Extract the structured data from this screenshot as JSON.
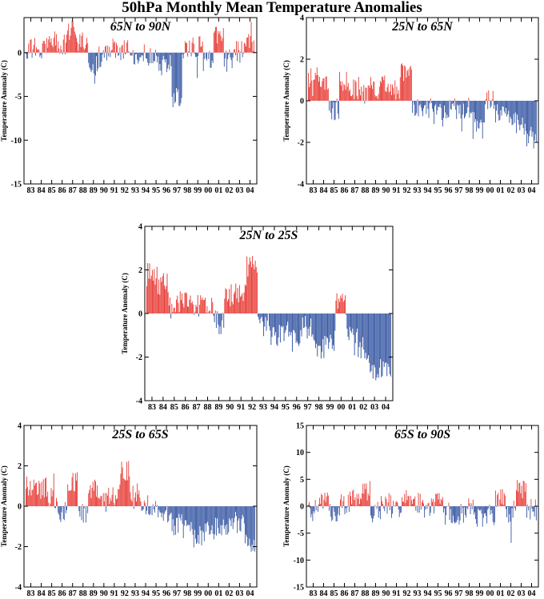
{
  "page_title": "50hPa Monthly Mean Temperature Anomalies",
  "colors": {
    "positive": "#e8403a",
    "negative": "#3b5ba5",
    "frame": "#000000"
  },
  "chart_data": [
    {
      "type": "bar",
      "title": "65N to 90N",
      "ylabel": "Temperature Anomaly (C)",
      "ylim": [
        -15,
        4
      ],
      "yticks": [
        -15,
        -10,
        -5,
        0
      ],
      "xtick_labels": [
        "83",
        "84",
        "85",
        "86",
        "87",
        "88",
        "89",
        "90",
        "91",
        "92",
        "93",
        "94",
        "95",
        "96",
        "97",
        "98",
        "99",
        "00",
        "01",
        "02",
        "03",
        "04"
      ],
      "x_unit": "year",
      "annual_values": [
        0.5,
        0.2,
        1.6,
        0.8,
        2.4,
        1.5,
        -1.5,
        -0.4,
        0.5,
        0.4,
        -0.3,
        -0.2,
        -0.8,
        -1.5,
        -5.0,
        0.3,
        0.6,
        -1.0,
        1.8,
        -0.6,
        0.1,
        1.2
      ]
    },
    {
      "type": "bar",
      "title": "25N to 65N",
      "ylabel": "Temperature Anomaly (C)",
      "ylim": [
        -4,
        4
      ],
      "yticks": [
        -4,
        -2,
        0,
        2,
        4
      ],
      "xtick_labels": [
        "83",
        "84",
        "85",
        "86",
        "87",
        "88",
        "89",
        "90",
        "91",
        "92",
        "93",
        "94",
        "95",
        "96",
        "97",
        "98",
        "99",
        "00",
        "01",
        "02",
        "03",
        "04"
      ],
      "x_unit": "year",
      "annual_values": [
        1.2,
        0.8,
        -0.4,
        0.9,
        0.6,
        0.4,
        0.6,
        0.7,
        0.6,
        1.5,
        -0.3,
        -0.4,
        -0.7,
        -0.4,
        -0.4,
        -0.3,
        -1.3,
        0.1,
        -0.6,
        -0.8,
        -1.2,
        -1.8
      ]
    },
    {
      "type": "bar",
      "title": "25N to 25S",
      "ylabel": "Temperature Anomaly (C)",
      "ylim": [
        -4,
        4
      ],
      "yticks": [
        -4,
        -2,
        0,
        2,
        4
      ],
      "xtick_labels": [
        "83",
        "84",
        "85",
        "86",
        "87",
        "88",
        "89",
        "90",
        "91",
        "92",
        "93",
        "94",
        "95",
        "96",
        "97",
        "98",
        "99",
        "00",
        "01",
        "02",
        "03",
        "04"
      ],
      "x_unit": "year",
      "annual_values": [
        1.8,
        1.4,
        0.3,
        0.5,
        0.4,
        0.2,
        -0.4,
        0.8,
        1.0,
        2.2,
        -0.5,
        -1.0,
        -0.9,
        -1.2,
        -0.6,
        -1.6,
        -1.2,
        0.4,
        -1.0,
        -1.6,
        -2.8,
        -2.4
      ]
    },
    {
      "type": "bar",
      "title": "25S to 65S",
      "ylabel": "Temperature Anomaly (C)",
      "ylim": [
        -4,
        4
      ],
      "yticks": [
        -4,
        -2,
        0,
        2,
        4
      ],
      "xtick_labels": [
        "83",
        "84",
        "85",
        "86",
        "87",
        "88",
        "89",
        "90",
        "91",
        "92",
        "93",
        "94",
        "95",
        "96",
        "97",
        "98",
        "99",
        "00",
        "01",
        "02",
        "03",
        "04"
      ],
      "x_unit": "year",
      "annual_values": [
        1.0,
        0.9,
        0.4,
        -0.3,
        1.2,
        -0.4,
        0.8,
        0.2,
        0.4,
        1.7,
        0.6,
        0.1,
        -0.2,
        -0.5,
        -0.9,
        -1.2,
        -1.5,
        -1.3,
        -1.1,
        -1.0,
        -0.8,
        -1.7
      ]
    },
    {
      "type": "bar",
      "title": "65S to 90S",
      "ylabel": "Temperature Anomaly (C)",
      "ylim": [
        -15,
        15
      ],
      "yticks": [
        -15,
        -10,
        -5,
        0,
        5,
        10,
        15
      ],
      "xtick_labels": [
        "83",
        "84",
        "85",
        "86",
        "87",
        "88",
        "89",
        "90",
        "91",
        "92",
        "93",
        "94",
        "95",
        "96",
        "97",
        "98",
        "99",
        "00",
        "01",
        "02",
        "03",
        "04"
      ],
      "x_unit": "year",
      "annual_values": [
        -0.8,
        0.6,
        -1.2,
        0.3,
        1.5,
        2.8,
        -1.0,
        0.4,
        -0.6,
        1.8,
        0.5,
        -0.5,
        0.6,
        -1.4,
        -1.2,
        -0.6,
        -1.8,
        -1.5,
        1.4,
        -1.0,
        3.5,
        -0.6
      ]
    }
  ]
}
